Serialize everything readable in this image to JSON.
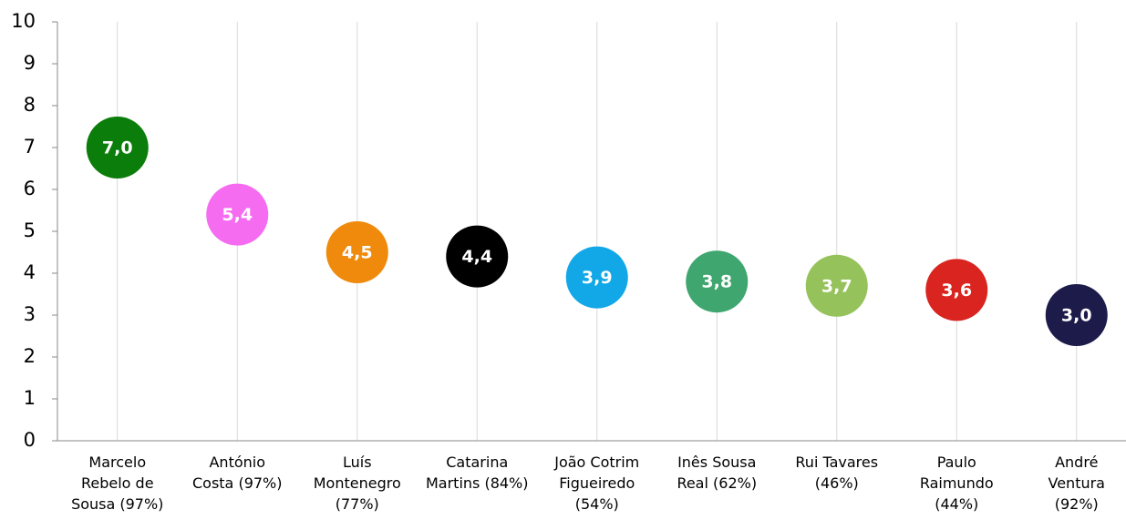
{
  "chart_data": {
    "type": "dot",
    "categories": [
      "Marcelo\nRebelo de\nSousa (97%)",
      "António\nCosta (97%)",
      "Luís\nMontenegro\n(77%)",
      "Catarina\nMartins (84%)",
      "João Cotrim\nFigueiredo\n(54%)",
      "Inês Sousa\nReal (62%)",
      "Rui Tavares\n(46%)",
      "Paulo\nRaimundo\n(44%)",
      "André\nVentura\n(92%)"
    ],
    "values": [
      7.0,
      5.4,
      4.5,
      4.4,
      3.9,
      3.8,
      3.7,
      3.6,
      3.0
    ],
    "value_labels": [
      "7,0",
      "5,4",
      "4,5",
      "4,4",
      "3,9",
      "3,8",
      "3,7",
      "3,6",
      "3,0"
    ],
    "colors": [
      "#0a7d0a",
      "#f56cf0",
      "#ef8a0c",
      "#000000",
      "#12a8e8",
      "#3ea66e",
      "#96c25c",
      "#d9241f",
      "#1d1b4a"
    ],
    "ylim": [
      0,
      10
    ],
    "yticks": [
      0,
      1,
      2,
      3,
      4,
      5,
      6,
      7,
      8,
      9,
      10
    ],
    "grid": true
  }
}
